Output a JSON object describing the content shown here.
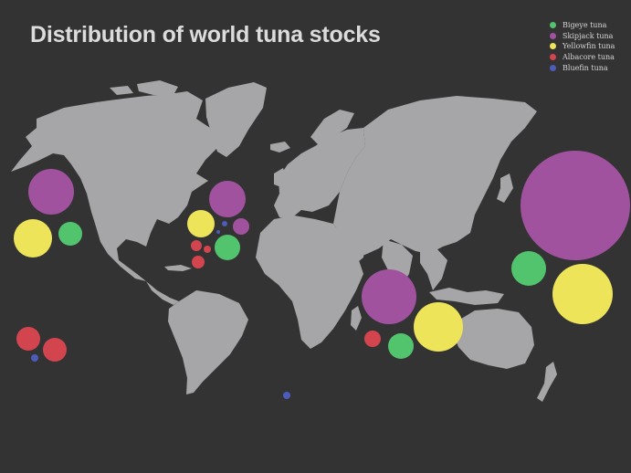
{
  "title": "Distribution of world tuna stocks",
  "species": [
    {
      "id": "bigeye",
      "label": "Bigeye tuna",
      "color": "#52c46e"
    },
    {
      "id": "skipjack",
      "label": "Skipjack tuna",
      "color": "#a1529f"
    },
    {
      "id": "yellowfin",
      "label": "Yellowfin tuna",
      "color": "#ede45a"
    },
    {
      "id": "albacore",
      "label": "Albacore tuna",
      "color": "#d2454f"
    },
    {
      "id": "bluefin",
      "label": "Bluefin tuna",
      "color": "#4c5cb8"
    }
  ],
  "map": {
    "land_color": "#a6a6a8",
    "background": "#333333"
  }
}
